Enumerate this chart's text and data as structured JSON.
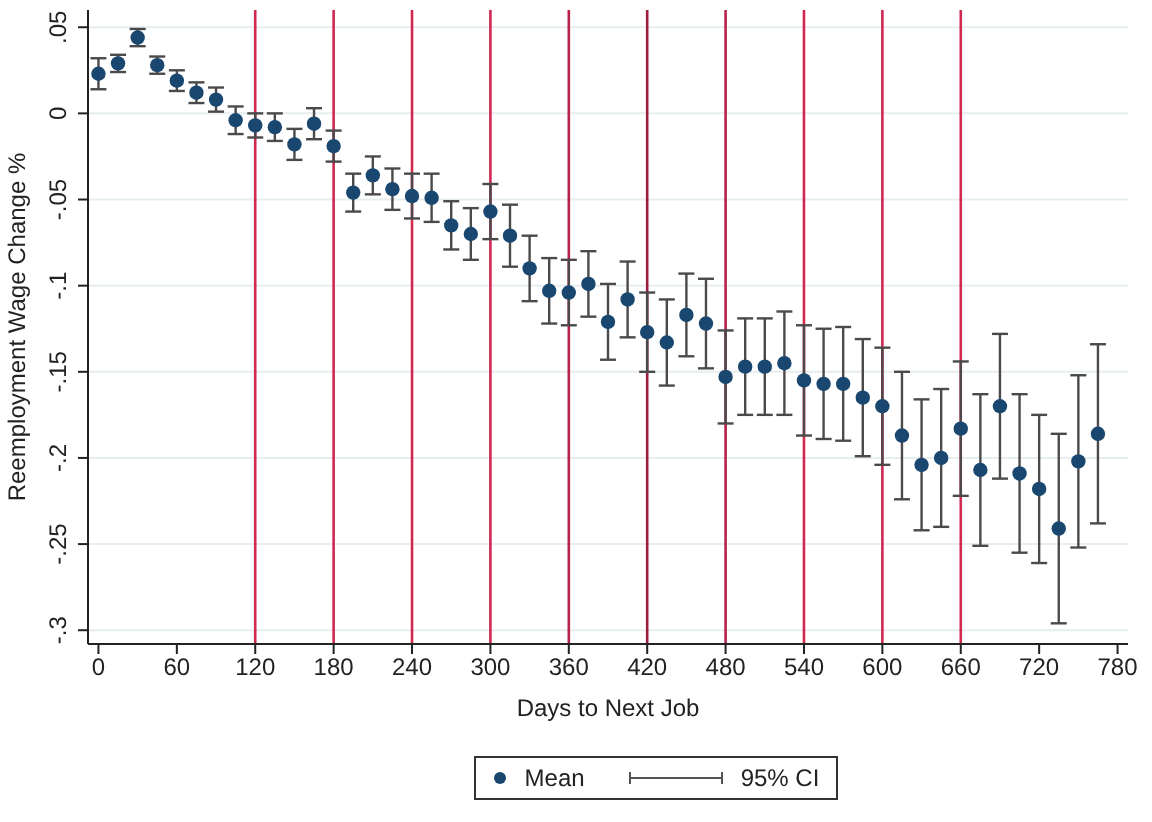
{
  "chart_data": {
    "type": "scatter",
    "xlabel": "Days to Next Job",
    "ylabel": "Reemployment Wage Change %",
    "x": [
      0,
      15,
      30,
      45,
      60,
      75,
      90,
      105,
      120,
      135,
      150,
      165,
      180,
      195,
      210,
      225,
      240,
      255,
      270,
      285,
      300,
      315,
      330,
      345,
      360,
      375,
      390,
      405,
      420,
      435,
      450,
      465,
      480,
      495,
      510,
      525,
      540,
      555,
      570,
      585,
      600,
      615,
      630,
      645,
      660,
      675,
      690,
      705,
      720,
      735,
      750,
      765
    ],
    "series": [
      {
        "name": "Mean",
        "color": "#1a476f",
        "values": [
          0.023,
          0.029,
          0.044,
          0.028,
          0.019,
          0.012,
          0.008,
          -0.004,
          -0.007,
          -0.008,
          -0.018,
          -0.006,
          -0.019,
          -0.046,
          -0.036,
          -0.044,
          -0.048,
          -0.049,
          -0.065,
          -0.07,
          -0.057,
          -0.071,
          -0.09,
          -0.103,
          -0.104,
          -0.099,
          -0.121,
          -0.108,
          -0.127,
          -0.133,
          -0.117,
          -0.122,
          -0.153,
          -0.147,
          -0.147,
          -0.145,
          -0.155,
          -0.157,
          -0.157,
          -0.165,
          -0.17,
          -0.187,
          -0.204,
          -0.2,
          -0.183,
          -0.207,
          -0.17,
          -0.209,
          -0.218,
          -0.241,
          -0.202,
          -0.186
        ],
        "errors": [
          0.009,
          0.005,
          0.005,
          0.005,
          0.006,
          0.006,
          0.007,
          0.008,
          0.007,
          0.008,
          0.009,
          0.009,
          0.009,
          0.011,
          0.011,
          0.012,
          0.013,
          0.014,
          0.014,
          0.015,
          0.016,
          0.018,
          0.019,
          0.019,
          0.019,
          0.019,
          0.022,
          0.022,
          0.023,
          0.025,
          0.024,
          0.026,
          0.027,
          0.028,
          0.028,
          0.03,
          0.032,
          0.032,
          0.033,
          0.034,
          0.034,
          0.037,
          0.038,
          0.04,
          0.039,
          0.044,
          0.042,
          0.046,
          0.043,
          0.055,
          0.05,
          0.052
        ]
      }
    ],
    "xlim": [
      -8,
      788
    ],
    "xticks": [
      0,
      60,
      120,
      180,
      240,
      300,
      360,
      420,
      480,
      540,
      600,
      660,
      720,
      780
    ],
    "ylim": [
      -0.308,
      0.06
    ],
    "yticks": [
      {
        "value": 0.05,
        "label": ".05"
      },
      {
        "value": 0,
        "label": "0"
      },
      {
        "value": -0.05,
        "label": "-.05"
      },
      {
        "value": -0.1,
        "label": "-.1"
      },
      {
        "value": -0.15,
        "label": "-.15"
      },
      {
        "value": -0.2,
        "label": "-.2"
      },
      {
        "value": -0.25,
        "label": "-.25"
      },
      {
        "value": -0.3,
        "label": "-.3"
      }
    ],
    "ref_lines": [
      {
        "axis": "x",
        "value": 120,
        "color": "#d0284f"
      },
      {
        "axis": "x",
        "value": 180,
        "color": "#d0284f"
      },
      {
        "axis": "x",
        "value": 240,
        "color": "#d0284f"
      },
      {
        "axis": "x",
        "value": 300,
        "color": "#d0284f"
      },
      {
        "axis": "x",
        "value": 360,
        "color": "#b8204a"
      },
      {
        "axis": "x",
        "value": 420,
        "color": "#a01c3c"
      },
      {
        "axis": "x",
        "value": 480,
        "color": "#b8204a"
      },
      {
        "axis": "x",
        "value": 540,
        "color": "#d0284f"
      },
      {
        "axis": "x",
        "value": 600,
        "color": "#d0284f"
      },
      {
        "axis": "x",
        "value": 660,
        "color": "#d0284f"
      }
    ],
    "annotations": [
      "95% CI"
    ],
    "grid": "y",
    "legend": "bottom",
    "marker": "circle"
  }
}
